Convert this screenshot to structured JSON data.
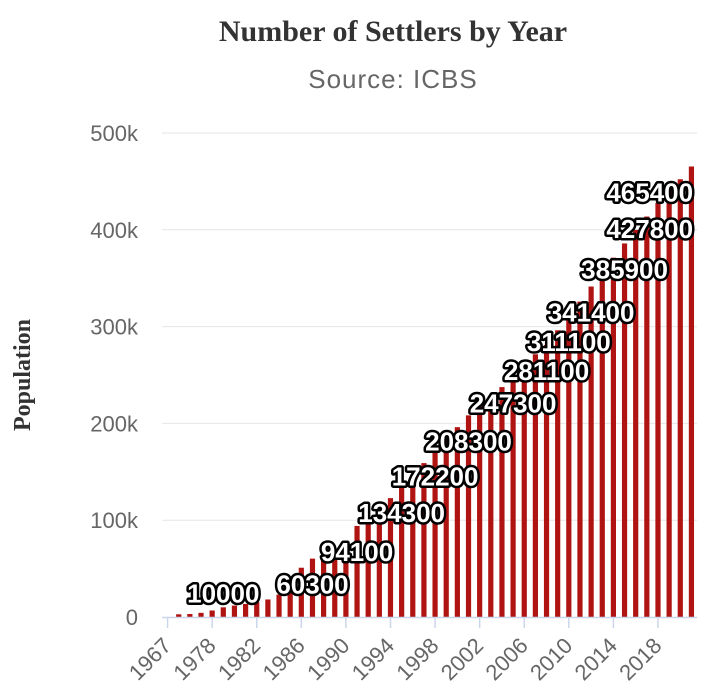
{
  "chart_data": {
    "type": "bar",
    "title": "Number of Settlers by Year",
    "subtitle": "Source: ICBS",
    "ylabel": "Population",
    "xlabel": "",
    "legend": false,
    "grid": true,
    "ylim": [
      0,
      500000
    ],
    "y_ticks": [
      {
        "value": 0,
        "label": "0"
      },
      {
        "value": 100000,
        "label": "100k"
      },
      {
        "value": 200000,
        "label": "200k"
      },
      {
        "value": 300000,
        "label": "300k"
      },
      {
        "value": 400000,
        "label": "400k"
      },
      {
        "value": 500000,
        "label": "500k"
      }
    ],
    "categories": [
      "1967",
      "1970",
      "1972",
      "1976",
      "1978",
      "1979",
      "1980",
      "1981",
      "1982",
      "1983",
      "1984",
      "1985",
      "1986",
      "1987",
      "1988",
      "1989",
      "1990",
      "1991",
      "1992",
      "1993",
      "1994",
      "1995",
      "1996",
      "1997",
      "1998",
      "1999",
      "2000",
      "2001",
      "2002",
      "2003",
      "2004",
      "2005",
      "2006",
      "2007",
      "2008",
      "2009",
      "2010",
      "2011",
      "2012",
      "2013",
      "2014",
      "2015",
      "2016",
      "2017",
      "2018",
      "2019",
      "2020",
      "2021"
    ],
    "values": [
      0,
      2800,
      3100,
      4300,
      6700,
      10000,
      11800,
      13500,
      15300,
      18100,
      23100,
      27500,
      50900,
      60300,
      64600,
      69800,
      78600,
      94100,
      102400,
      111600,
      122800,
      134300,
      146300,
      159000,
      172200,
      184200,
      196100,
      208300,
      218200,
      227700,
      237500,
      247300,
      260900,
      271400,
      281100,
      296200,
      311100,
      325800,
      341400,
      356300,
      371200,
      385900,
      399900,
      413700,
      427800,
      441600,
      452200,
      465400
    ],
    "x_tick_every": 4,
    "x_tick_labels": [
      "1967",
      "1978",
      "1982",
      "1986",
      "1990",
      "1994",
      "1998",
      "2002",
      "2006",
      "2010",
      "2014",
      "2018"
    ],
    "visible_data_labels": [
      {
        "category": "1979",
        "label": "10000"
      },
      {
        "category": "1987",
        "label": "60300"
      },
      {
        "category": "1991",
        "label": "94100"
      },
      {
        "category": "1995",
        "label": "134300"
      },
      {
        "category": "1998",
        "label": "172200"
      },
      {
        "category": "2001",
        "label": "208300"
      },
      {
        "category": "2005",
        "label": "247300"
      },
      {
        "category": "2008",
        "label": "281100"
      },
      {
        "category": "2010",
        "label": "311100"
      },
      {
        "category": "2012",
        "label": "341400"
      },
      {
        "category": "2015",
        "label": "385900"
      },
      {
        "category": "2018",
        "label": "427800"
      },
      {
        "category": "2021",
        "label": "465400"
      }
    ],
    "colors": {
      "bar": "#b01412",
      "grid_line": "#e6e6e6",
      "axis_line": "#ccd6eb",
      "axis_text": "#666666",
      "title_text": "#333333",
      "subtitle_text": "#666666",
      "data_label_fill": "#ffffff",
      "data_label_outline": "#000000"
    }
  }
}
